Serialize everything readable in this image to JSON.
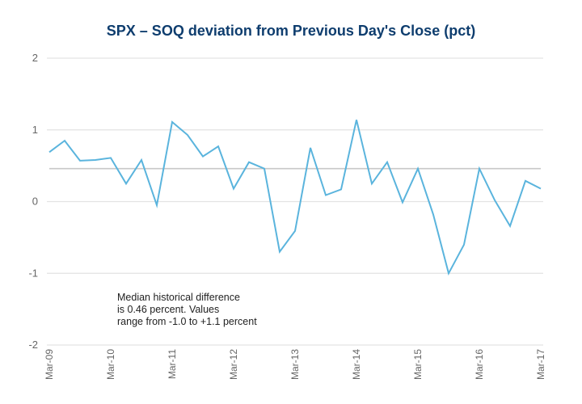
{
  "chart_data": {
    "type": "line",
    "title": "SPX – SOQ deviation from Previous Day's Close (pct)",
    "xlabel": "",
    "ylabel": "",
    "ylim": [
      -2,
      2
    ],
    "yticks": [
      "2",
      "1",
      "0",
      "-1",
      "-2"
    ],
    "ytick_values": [
      2,
      1,
      0,
      -1,
      -2
    ],
    "grid": true,
    "x_tick_labels": [
      "Mar-09",
      "Mar-10",
      "Mar-11",
      "Mar-12",
      "Mar-13",
      "Mar-14",
      "Mar-15",
      "Mar-16",
      "Mar-17"
    ],
    "x_tick_every": 4,
    "series": [
      {
        "name": "SOQ deviation",
        "color": "#5ab4dd",
        "values": [
          0.69,
          0.85,
          0.57,
          0.58,
          0.61,
          0.25,
          0.58,
          -0.05,
          1.11,
          0.93,
          0.63,
          0.77,
          0.18,
          0.55,
          0.46,
          -0.7,
          -0.41,
          0.75,
          0.09,
          0.17,
          1.14,
          0.25,
          0.55,
          -0.01,
          0.46,
          -0.18,
          -1.0,
          -0.6,
          0.46,
          0.02,
          -0.34,
          0.29,
          0.18
        ]
      }
    ],
    "reference_line": {
      "name": "Median",
      "value": 0.46,
      "color": "#c8c8c8"
    },
    "annotation": [
      "Median historical difference",
      "is 0.46 percent.  Values",
      "range from -1.0 to +1.1 percent"
    ],
    "colors": {
      "title": "#0e3d6e",
      "grid": "#e3e3e3",
      "tick_text": "#666666"
    }
  }
}
